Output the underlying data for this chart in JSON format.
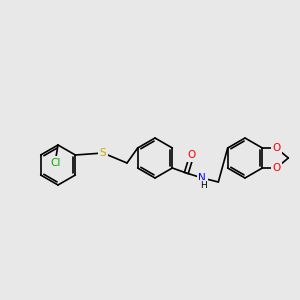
{
  "bg_color": "#e8e8e8",
  "bond_color": "#000000",
  "atom_colors": {
    "O": "#ff0000",
    "N": "#0000ff",
    "S": "#ccaa00",
    "Cl": "#00aa00"
  },
  "font_size": 7.5,
  "linewidth": 1.2,
  "scale": 1.0
}
